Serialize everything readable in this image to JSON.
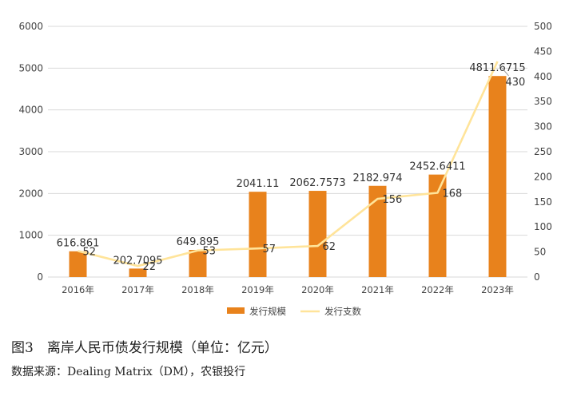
{
  "chart_data": {
    "type": "bar+line",
    "categories": [
      "2016年",
      "2017年",
      "2018年",
      "2019年",
      "2020年",
      "2021年",
      "2022年",
      "2023年"
    ],
    "series": [
      {
        "name": "发行规模",
        "type": "bar",
        "axis": "left",
        "values": [
          616.861,
          202.7095,
          649.895,
          2041.11,
          2062.7573,
          2182.974,
          2452.6411,
          4811.6715
        ],
        "labels": [
          "616.861",
          "202.7095",
          "649.895",
          "2041.11",
          "2062.7573",
          "2182.974",
          "2452.6411",
          "4811.6715"
        ],
        "color": "#E8821C"
      },
      {
        "name": "发行支数",
        "type": "line",
        "axis": "right",
        "values": [
          52,
          22,
          53,
          57,
          62,
          156,
          168,
          430
        ],
        "labels": [
          "52",
          "22",
          "53",
          "57",
          "62",
          "156",
          "168",
          "430"
        ],
        "color": "#FFE49A"
      }
    ],
    "y_left": {
      "min": 0,
      "max": 6000,
      "ticks": [
        "0",
        "1000",
        "2000",
        "3000",
        "4000",
        "5000",
        "6000"
      ]
    },
    "y_right": {
      "min": 0,
      "max": 500,
      "ticks": [
        "0",
        "50",
        "100",
        "150",
        "200",
        "250",
        "300",
        "350",
        "400",
        "450",
        "500"
      ]
    },
    "grid": true,
    "legend_position": "bottom"
  },
  "caption": {
    "title": "图3　离岸人民币债发行规模（单位：亿元）",
    "source": "数据来源：Dealing Matrix（DM），农银投行"
  }
}
